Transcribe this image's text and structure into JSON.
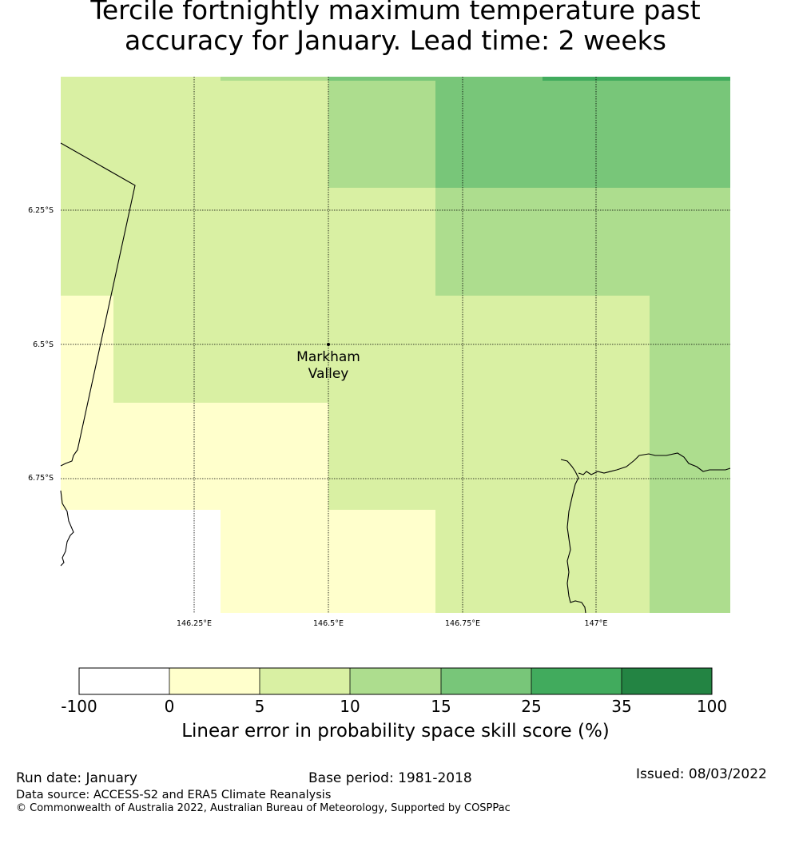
{
  "title_line1": "Tercile fortnightly maximum temperature past",
  "title_line2": "accuracy for January. Lead time: 2 weeks",
  "map": {
    "lon_ticks": [
      "146.25°E",
      "146.5°E",
      "146.75°E",
      "147°E"
    ],
    "lat_ticks": [
      "6.25°S",
      "6.5°S",
      "6.75°S"
    ],
    "location": {
      "name_line1": "Markham",
      "name_line2": "Valley"
    },
    "palette": {
      "none": "#ffffff",
      "c0_5": "#ffffcc",
      "c5_10": "#d9f0a3",
      "c10_15": "#addd8e",
      "c15_25": "#78c679",
      "c25_35": "#41ab5d",
      "c35_100": "#238443"
    }
  },
  "colorbar": {
    "ticks": [
      "-100",
      "0",
      "5",
      "10",
      "15",
      "25",
      "35",
      "100"
    ],
    "colors": [
      "#ffffff",
      "#ffffcc",
      "#d9f0a3",
      "#addd8e",
      "#78c679",
      "#41ab5d",
      "#238443"
    ],
    "label": "Linear error in probability space skill score (%)"
  },
  "footer": {
    "run_date": "Run date: January",
    "base_period": "Base period: 1981-2018",
    "issued": "Issued: 08/03/2022",
    "data_source": "Data source: ACCESS-S2 and ERA5 Climate Reanalysis",
    "copyright": "© Commonwealth of Australia 2022, Australian Bureau of Meteorology, Supported by COSPPac"
  }
}
